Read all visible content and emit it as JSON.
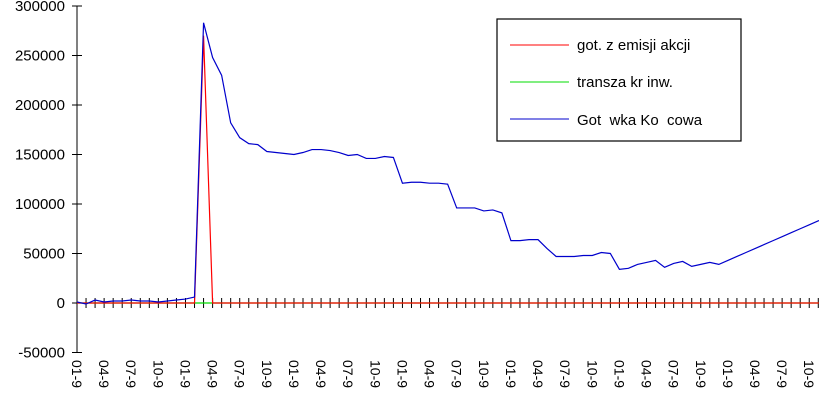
{
  "chart_data": {
    "type": "line",
    "title": "",
    "xlabel": "",
    "ylabel": "",
    "ylim": [
      -50000,
      300000
    ],
    "yticks": [
      300000,
      250000,
      200000,
      150000,
      100000,
      50000,
      0,
      -50000
    ],
    "ytick_labels": [
      "300000",
      "250000",
      "200000",
      "150000",
      "100000",
      "50000",
      "0",
      "-50000"
    ],
    "x_tick_labels": [
      "01-9",
      "04-9",
      "07-9",
      "10-9",
      "01-9",
      "04-9",
      "07-9",
      "10-9",
      "01-9",
      "04-9",
      "07-9",
      "10-9",
      "01-9",
      "04-9",
      "07-9",
      "10-9",
      "01-9",
      "04-9",
      "07-9",
      "10-9",
      "01-9",
      "04-9",
      "07-9",
      "10-9",
      "01-9",
      "04-9",
      "07-9",
      "10-9"
    ],
    "x_count": 84,
    "grid": false,
    "legend_position": "upper-right",
    "series": [
      {
        "name": "got. z emisji akcji",
        "color": "#ff0000",
        "points": [
          [
            0,
            0
          ],
          [
            13,
            0
          ],
          [
            14,
            270000
          ],
          [
            15,
            0
          ],
          [
            83,
            0
          ]
        ]
      },
      {
        "name": "transza kr inw.",
        "color": "#00dd00",
        "points": [
          [
            0,
            0
          ],
          [
            83,
            0
          ]
        ]
      },
      {
        "name": "Got  wka Ko  cowa",
        "color": "#0000cc",
        "values": [
          1000,
          -1000,
          3000,
          1000,
          2000,
          2000,
          3000,
          2000,
          2000,
          1000,
          2000,
          3000,
          4000,
          6000,
          283000,
          248000,
          230000,
          182000,
          167000,
          161000,
          160000,
          153000,
          152000,
          151000,
          150000,
          152000,
          155000,
          155000,
          154000,
          152000,
          149000,
          150000,
          146000,
          146000,
          148000,
          147000,
          121000,
          122000,
          122000,
          121000,
          121000,
          120000,
          96000,
          96000,
          96000,
          93000,
          94000,
          91000,
          63000,
          63000,
          64000,
          64000,
          55000,
          47000,
          47000,
          47000,
          48000,
          48000,
          51000,
          50000,
          34000,
          35000,
          39000,
          41000,
          43000,
          36000,
          40000,
          42000,
          37000,
          39000,
          41000,
          39000,
          43000,
          47000,
          51000,
          55000,
          59000,
          63000,
          67000,
          71000,
          75000,
          79000,
          83000,
          85000
        ]
      }
    ]
  },
  "legend": {
    "items": [
      {
        "label": "got. z emisji akcji",
        "color": "#ff0000"
      },
      {
        "label": "transza kr inw.",
        "color": "#00dd00"
      },
      {
        "label": "Got  wka Ko  cowa",
        "color": "#0000cc"
      }
    ]
  }
}
